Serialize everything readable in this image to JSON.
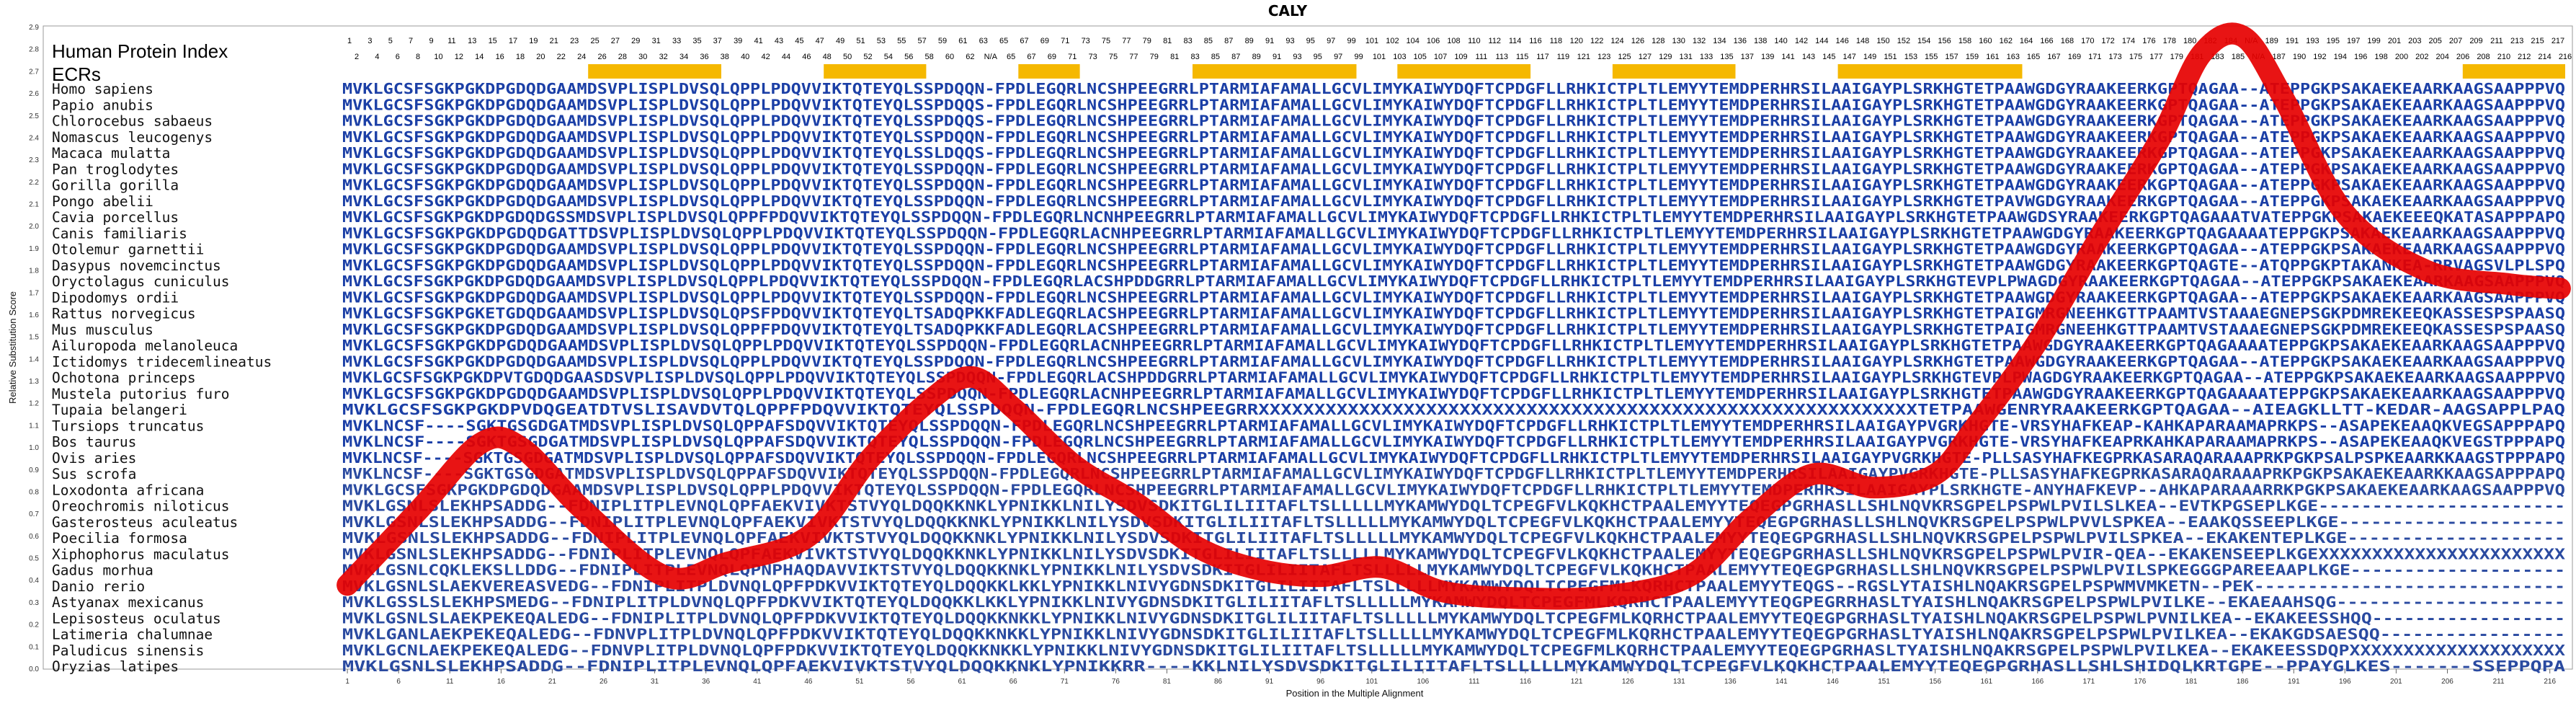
{
  "title": "CALY",
  "panel_heading": "Human Protein Index",
  "ecrs_label": "ECRs",
  "colors": {
    "conserved": "#1b3fa6",
    "variable": "#7a8fc0",
    "ecr_bar": "#f5b800",
    "curve": "#e60000"
  },
  "axes": {
    "ylabel": "Relative Substitution Score",
    "xlabel": "Position in the Multiple Alignment",
    "yticks": [
      "0.0",
      "0.1",
      "0.2",
      "0.3",
      "0.4",
      "0.5",
      "0.6",
      "0.7",
      "0.8",
      "0.9",
      "1.0",
      "1.1",
      "1.2",
      "1.3",
      "1.4",
      "1.5",
      "1.6",
      "1.7",
      "1.8",
      "1.9",
      "2.0",
      "2.1",
      "2.2",
      "2.3",
      "2.4",
      "2.5",
      "2.6",
      "2.7",
      "2.8",
      "2.9"
    ],
    "xticks": [
      "1",
      "6",
      "11",
      "16",
      "21",
      "26",
      "31",
      "36",
      "41",
      "46",
      "51",
      "56",
      "61",
      "66",
      "71",
      "76",
      "81",
      "86",
      "91",
      "96",
      "101",
      "106",
      "111",
      "116",
      "121",
      "126",
      "131",
      "136",
      "141",
      "146",
      "151",
      "156",
      "161",
      "166",
      "171",
      "176",
      "181",
      "186",
      "191",
      "196",
      "201",
      "206",
      "211",
      "216"
    ]
  },
  "index_odd": [
    "1",
    "3",
    "5",
    "7",
    "9",
    "11",
    "13",
    "15",
    "17",
    "19",
    "21",
    "23",
    "25",
    "27",
    "29",
    "31",
    "33",
    "35",
    "37",
    "39",
    "41",
    "43",
    "45",
    "47",
    "49",
    "51",
    "53",
    "55",
    "57",
    "59",
    "61",
    "63",
    "65",
    "67",
    "69",
    "71",
    "73",
    "75",
    "77",
    "79",
    "81",
    "83",
    "85",
    "87",
    "89",
    "91",
    "93",
    "95",
    "97",
    "99",
    "101",
    "102",
    "104",
    "106",
    "108",
    "110",
    "112",
    "114",
    "116",
    "118",
    "120",
    "122",
    "124",
    "126",
    "128",
    "130",
    "132",
    "134",
    "136",
    "138",
    "140",
    "142",
    "144",
    "146",
    "148",
    "150",
    "152",
    "154",
    "156",
    "158",
    "160",
    "162",
    "164",
    "166",
    "168",
    "170",
    "172",
    "174",
    "176",
    "178",
    "180",
    "182",
    "184",
    "N/A",
    "189",
    "191",
    "193",
    "195",
    "197",
    "199",
    "201",
    "203",
    "205",
    "207",
    "209",
    "211",
    "213",
    "215",
    "217"
  ],
  "index_even": [
    "2",
    "4",
    "6",
    "8",
    "10",
    "12",
    "14",
    "16",
    "18",
    "20",
    "22",
    "24",
    "26",
    "28",
    "30",
    "32",
    "34",
    "36",
    "38",
    "40",
    "42",
    "44",
    "46",
    "48",
    "50",
    "52",
    "54",
    "56",
    "58",
    "60",
    "62",
    "N/A",
    "65",
    "67",
    "69",
    "71",
    "73",
    "75",
    "77",
    "79",
    "81",
    "83",
    "85",
    "87",
    "89",
    "91",
    "93",
    "95",
    "97",
    "99",
    "101",
    "103",
    "105",
    "107",
    "109",
    "111",
    "113",
    "115",
    "117",
    "119",
    "121",
    "123",
    "125",
    "127",
    "129",
    "131",
    "133",
    "135",
    "137",
    "139",
    "141",
    "143",
    "145",
    "147",
    "149",
    "151",
    "153",
    "155",
    "157",
    "159",
    "161",
    "163",
    "165",
    "167",
    "169",
    "171",
    "173",
    "175",
    "177",
    "179",
    "181",
    "183",
    "185",
    "N/A",
    "187",
    "190",
    "192",
    "194",
    "196",
    "198",
    "200",
    "202",
    "204",
    "206",
    "208",
    "210",
    "212",
    "214",
    "216"
  ],
  "ecr_regions": [
    [
      25,
      37
    ],
    [
      48,
      57
    ],
    [
      67,
      72
    ],
    [
      84,
      99
    ],
    [
      104,
      116
    ],
    [
      125,
      136
    ],
    [
      147,
      164
    ],
    [
      208,
      217
    ]
  ],
  "chart_data": {
    "type": "line",
    "title": "CALY",
    "xlabel": "Position in the Multiple Alignment",
    "ylabel": "Relative Substitution Score",
    "xlim": [
      1,
      217
    ],
    "ylim": [
      0.0,
      2.9
    ],
    "series": [
      {
        "x": [
          1,
          8,
          14,
          18,
          24,
          32,
          38,
          46,
          52,
          58,
          62,
          66,
          72,
          78,
          84,
          90,
          96,
          102,
          108,
          116,
          124,
          132,
          138,
          144,
          150,
          156,
          160,
          166,
          172,
          178,
          182,
          186,
          190,
          196,
          204,
          212,
          217
        ],
        "y": [
          0.38,
          0.72,
          1.02,
          1.0,
          0.72,
          0.42,
          0.48,
          0.6,
          0.95,
          1.22,
          1.32,
          1.18,
          0.92,
          0.75,
          0.55,
          0.45,
          0.42,
          0.46,
          0.35,
          0.32,
          0.33,
          0.42,
          0.68,
          0.88,
          0.82,
          0.88,
          1.1,
          1.48,
          1.95,
          2.4,
          2.78,
          2.86,
          2.58,
          2.06,
          1.8,
          1.74,
          1.72
        ]
      }
    ]
  },
  "rows": [
    {
      "species": "Homo sapiens",
      "seq": "MVKLGCSFSGKPGKDPGDQDGAAMDSVPLISPLDVSQLQPPLPDQVVIKTQTEYQLSSPDQQN-FPDLEGQRLNCSHPEEGRRLPTARMIAFAMALLGCVLIMYKAIWYDQFTCPDGFLLRHKICTPLTLEMYYTEMDPERHRSILAAIGAYPLSRKHGTETPAAWGDGYRAAKEERKGPTQAGAA--ATEPPGKPSAKAEKEAARKAAGSAAPPPVQ"
    },
    {
      "species": "Papio anubis",
      "seq": "MVKLGCSFSGKPGKDPGDQDGAAMDSVPLISPLDVSQLQPPLPDQVVIKTQTEYQLSSPDQQS-FPDLEGQRLNCSHPEEGRRLPTARMIAFAMALLGCVLIMYKAIWYDQFTCPDGFLLRHKICTPLTLEMYYTEMDPERHRSILAAIGAYPLSRKHGTETPAAWGDGYRAAKEERKGPTQAGAA--ATEPPGKPSAKAEKEAARKAAGSAAPPPVQ"
    },
    {
      "species": "Chlorocebus sabaeus",
      "seq": "MVKLGCSFSGKPGKDPGDQDGAAMDSVPLISPLDVSQLQPPLPDQVVIKTQTEYQLSSPDQQS-FPDLEGQRLNCSHPEEGRRLPTARMIAFAMALLGCVLIMYKAIWYDQFTCPDGFLLRHKICTPLTLEMYYTEMDPERHRSILAAIGAYPLSRKHGTETPAAWGDGYRAAKEERKGPTQAGAA--ATEPPGKPSAKAEKEAARKAAGSAAPPPVQ"
    },
    {
      "species": "Nomascus leucogenys",
      "seq": "MVKLGCSFSGKPGKDPGDQDGAAMDSVPLISPLDVSQLQPPLPDQVVIKTQTEYQLSSPDQQN-FPDLEGQRLNCSHPEEGRRLPTARMIAFAMALLGCVLIMYKAIWYDQFTCPDGFLLRHKICTPLTLEMYYTEMDPERHRSILAAIGAYPLSRKHGTETPAAWGDGYRAAKEERKGPTQAGAA--ATEPPGKPSAKAEKEAARKAAGSAAPPPVQ"
    },
    {
      "species": "Macaca mulatta",
      "seq": "MVKLGCSFSGKPGKDPGDQDGAAMDSVPLISPLDVSQLQPPLPDQVVIKTQTEYQLSSLDQQS-FPDLEGQRLNCSHPEEGRRLPTARMIAFAMALLGCVLIMYKAIWYDQFTCPDGFLLRHKICTPLTLEMYYTEMDPERHRSILAAIGAYPLSRKHGTETPAAWGDGYRAAKEERKGPTQAGAA--ATEPPGKPSAKAEKEAARKAAGSAAPPPVQ"
    },
    {
      "species": "Pan troglodytes",
      "seq": "MVKLGCSFSGKPGKDPGDQDGAAMDSVPLISPLDVSQLQPPLPDQVVIKTQTEYQLSSPDQQN-FPDLEGQRLNCSHPEEGRRLPTARMIAFAMALLGCVLIMYKAIWYDQFTCPDGFLLRHKICTPLTLEMYYTEMDPERHRSILAAIGAYPLSRKHGTETPAAWGDGYRAAKEERKGPTQAGAA--ATEPPGKPSAKAEKEAARKAAGSAAPPPVQ"
    },
    {
      "species": "Gorilla gorilla",
      "seq": "MVKLGCSFSGKPGKDPGDQDGAAMDSVPLISPLDVSQLQPPLPDQVVIKTQTEYQLSSPDQQN-FPDLEGQRLNCSHPEEGRRLPTARMIAFAMALLGCVLIMYKAIWYDQFTCPDGFLLRHKICTPLTLEMYYTEMDPERHRSILAAIGAYPLSRKHGTETPAAWGDGYRAAKEERKGPTQAGAA--ATEPPGKPSAKAEKEAARKAAGSAAPPPVQ"
    },
    {
      "species": "Pongo abelii",
      "seq": "MVKLGCSFSGKPGKDPGDQDGAAMDSVPLISPLDVSQLQPPLPDQVVIKTQTEYQLSSPDQQN-FPDLEGQRLNCSHPEEGRRLPTARMIAFAMALLGCVLIMYKAIWYDQFTCPDGFLLRHKICTPLTLEMYYTEMDPERHRSILAAIGAYPLSRKHGTETPAVWGDGYRAAKEERKGPTQAGAA--ATEPPGKPSAKAEKEAARKAAGSAAPPPVQ"
    },
    {
      "species": "Cavia porcellus",
      "seq": "MVKLGCSFSGKPGKDPGDQDGSSMDSVPLISPLDVSQLQPPFPDQVVIKTQTEYQLSSPDQQN-FPDLEGQRLNCNHPEEGRRLPTARMIAFAMALLGCVLIMYKAIWYDQFTCPDGFLLRHKICTPLTLEMYYTEMDPERHRSILAAIGAYPLSRKHGTETPAAWGDSYRAAKEERKGPTQAGAAATVATEPPGKPSAKAEKEEEQKATASAPPPAPQ"
    },
    {
      "species": "Canis familiaris",
      "seq": "MVKLGCSFSGKPGKDPGDQDGATTDSVPLISPLDVSQLQPPLPDQVVIKTQTEYQLSSPDQQN-FPDLEGQRLACNHPEEGRRLPTARMIAFAMALLGCVLIMYKAIWYDQFTCPDGFLLRHKICTPLTLEMYYTEMDPERHRSILAAIGAYPLSRKHGTETPAAWGDGYRAAKEERKGPTQAGAAAATEPPGKPSAKAEKEAARKAAGSAAPPPVQ"
    },
    {
      "species": "Otolemur garnettii",
      "seq": "MVKLGCSFSGKPGKDPGDQDGAAMDSVPLISPLDVSQLQPPLPDQVVIKTQTEYQLSSPDQQN-FPDLEGQRLNCSHPEEGRRLPTARMIAFAMALLGCVLIMYKAIWYDQFTCPDGFLLRHKICTPLTLEMYYTEMDPERHRSILAAIGAYPLSRKHGTETPAAWGDGYRAAKEERKGPTQAGAA--ATEPPGKPSAKAEKEAARKAAGSAAPPPVQ"
    },
    {
      "species": "Dasypus novemcinctus",
      "seq": "MVKLGCSFSGKPGKDPGDQDGAAMDSVPLISPLDVSQLQPPLPDQVVIKTQTEYQLSSPDQQN-FPDLEGQRLNCSHPEEGRRLPTARMIAFAMALLGCVLIMYKAIWYDQFTCPDGFLLRHKICTPLTLEMYYTEMDPERHRSILAAIGAYPLSRKHGTETPAAWGDGYRAAKEERKGPTQAGTE--ATQPPGKPTAKANKEA-RRVAGSVLPLSPQ"
    },
    {
      "species": "Oryctolagus cuniculus",
      "seq": "MVKLGCSFSGKPGKDPGDQDGAAMDSVPLISPLDVSQLQPPLPDQVVIKTQTEYQLSSPDQQN-FPDLEGQRLACSHPDDGRRLPTARMIAFAMALLGCVLIMYKAIWYDQFTCPDGFLLRHKICTPLTLEMYYTEMDPERHRSILAAIGAYPLSRKHGTEVPLPWAGDGYRAAKEERKGPTQAGAA--ATEPPGKPSAKAEKEAARKAAGSAAPPPVQ"
    },
    {
      "species": "Dipodomys ordii",
      "seq": "MVKLGCSFSGKPGKDPGDQDGAAMDSVPLISPLDVSQLQPPLPDQVVIKTQTEYQLSSPDQQN-FPDLEGQRLNCSHPEEGRRLPTARMIAFAMALLGCVLIMYKAIWYDQFTCPDGFLLRHKICTPLTLEMYYTEMDPERHRSILAAIGAYPLSRKHGTETPAAWGDGYRAAKEERKGPTQAGAA--ATEPPGKPSAKAEKEAARKAAGSAAPPPVQ"
    },
    {
      "species": "Rattus norvegicus",
      "seq": "MVKLGCSFSGKPGKETGDQDGAAMDSVPLISPLDVSQLQPSFPDQVVIKTQTEYQLTSADQPKKFADLEGQRLACSHPEEGRRLPTARMIAFAMALLGCVLIMYKAIWYDQFTCPDGFLLRHKICTPLTLEMYYTEMDPERHRSILAAIGAYPLSRKHGTETPAIGMRGNEEHKGTTPAAMTVSTAAAEGNEPSGKPDMREKEEQKASSESPSPAASQ"
    },
    {
      "species": "Mus musculus",
      "seq": "MVKLGCSFSGKPGKDPGDQDGAAMDSVPLISPLDVSQLQPPFPDQVVIKTQTEYQLTSADQPKKFADLEGQRLACSHPEEGRRLPTARMIAFAMALLGCVLIMYKAIWYDQFTCPDGFLLRHKICTPLTLEMYYTEMDPERHRSILAAIGAYPLSRKHGTETPAIGMRGNEEHKGTTPAAMTVSTAAAEGNEPSGKPDMREKEEQKASSESPSPAASQ"
    },
    {
      "species": "Ailuropoda melanoleuca",
      "seq": "MVKLGCSFSGKPGKDPGDQDGAAMDSVPLISPLDVSQLQPPLPDQVVIKTQTEYQLSSPDQQN-FPDLEGQRLACNHPEEGRRLPTARMIAFAMALLGCVLIMYKAIWYDQFTCPDGFLLRHKICTPLTLEMYYTEMDPERHRSILAAIGAYPLSRKHGTETPAAWGDGYRAAKEERKGPTQAGAAAATEPPGKPSAKAEKEAARKAAGSAAPPPVQ"
    },
    {
      "species": "Ictidomys tridecemlineatus",
      "seq": "MVKLGCSFSGKPGKDPGDQDGAAMDSVPLISPLDVSQLQPPLPDQVVIKTQTEYQLSSPDQQN-FPDLEGQRLNCSHPEEGRRLPTARMIAFAMALLGCVLIMYKAIWYDQFTCPDGFLLRHKICTPLTLEMYYTEMDPERHRSILAAIGAYPLSRKHGTETPAAWGDGYRAAKEERKGPTQAGAA--ATEPPGKPSAKAEKEAARKAAGSAAPPPVQ"
    },
    {
      "species": "Ochotona princeps",
      "seq": "MVKLGCSFSGKPGKDPVTGDQDGAASDSVPLISPLDVSQLQPPLPDQVVIKTQTEYQLSSPDQQN-FPDLEGQRLACSHPDDGRRLPTARMIAFAMALLGCVLIMYKAIWYDQFTCPDGFLLRHKICTPLTLEMYYTEMDPERHRSILAAIGAYPLSRKHGTEVPLPWAGDGYRAAKEERKGPTQAGAA--ATEPPGKPSAKAEKEAARKAAGSAAPPPVQ"
    },
    {
      "species": "Mustela putorius furo",
      "seq": "MVKLGCSFSGKPGKDPGDQDGAAMDSVPLISPLDVSQLQPPLPDQVVIKTQTEYQLSSPDQQN-FPDLEGQRLACNHPEEGRRLPTARMIAFAMALLGCVLIMYKAIWYDQFTCPDGFLLRHKICTPLTLEMYYTEMDPERHRSILAAIGAYPLSRKHGTETPAAWGDGYRAAKEERKGPTQAGAAAATEPPGKPSAKAEKEAARKAAGSAAPPPVQ"
    },
    {
      "species": "Tupaia belangeri",
      "seq": "MVKLGCSFSGKPGKDPVDQGEATDTVSLISAVDVTQLQPPFPDQVVIKTQTEYQLSSPDQQN-FPDLEGQRLNCSHPEEGRRXXXXXXXXXXXXXXXXXXXXXXXXXXXXXXXXXXXXXXXXXXXXXXXXXXXXXXXXXXXTETPAAWGENRYRAAKEERKGPTQAGAA--AIEAGKLLTT-KEDAR-AAGSAPPLPAQ"
    },
    {
      "species": "Tursiops truncatus",
      "seq": "MVKLNCSF----SGKTGSGDGATMDSVPLISPLDVSQLQPPAFSDQVVIKTQTEYQLSSPDQQN-FPDLEGQRLNCSHPEEGRRLPTARMIAFAMALLGCVLIMYKAIWYDQFTCPDGFLLRHKICTPLTLEMYYTEMDPERHRSILAAIGAYPVGRKHGTE-VRSYHAFKEAP-KAHKAPARAAMAPRKPS--ASAPEKEAAQKVEGSAPPPAPQ"
    },
    {
      "species": "Bos taurus",
      "seq": "MVKLNCSF----SGKTGSGDGATMDSVPLISPLDVSQLQPPAFSDQVVIKTQTEYQLSSPDQQN-FPDLEGQRLNCSHPEEGRRLPTARMIAFAMALLGCVLIMYKAIWYDQFTCPDGFLLRHKICTPLTLEMYYTEMDPERHRSILAAIGAYPVGRKHGTE-VRSYHAFKEAPRKAHKAPARAAMAPRKPS--ASAPEKEAAQKVEGSTPPPAPQ"
    },
    {
      "species": "Ovis aries",
      "seq": "MVKLNCSF----SGKTGSGDGATMDSVPLISPLDVSQLQPPAFSDQVVIKTQTEYQLSSPDQQN-FPDLEGQRLNCSHPEEGRRLPTARMIAFAMALLGCVLIMYKAIWYDQFTCPDGFLLRHKICTPLTLEMYYTEMDPERHRSILAAIGAYPVGRKHGTE-PLLSASYHAFKEGPRKASARAQARAAAPRKPGKPSALPSPKEAARKKAAGSTPPPAPQ"
    },
    {
      "species": "Sus scrofa",
      "seq": "MVKLNCSF----SGKTGSGDGATMDSVPLISPLDVSQLQPPAFSDQVVIKTQTEYQLSSPDQQN-FPDLEGQRLNCSHPEEGRRLPTARMIAFAMALLGCVLIMYKAIWYDQFTCPDGFLLRHKICTPLTLEMYYTEMDPERHRSILAAIGAYPVGRKHGTE-PLLSASYHAFKEGPRKASARAQARAAAPRKPGKPSAKAEKEAARKKAAGSAPPPAPQ"
    },
    {
      "species": "Loxodonta africana",
      "seq": "MVKLGCSFSGKPGKDPGDQDGAAMDSVPLISPLDVSQLQPPLPDQVVIKTQTEYQLSSPDQQN-FPDLEGQRLNCSHPEEGRRLPTARMIAFAMALLGCVLIMYKAIWYDQFTCPDGFLLRHKICTPLTLEMYYTEMDPERHRSILAAIGAYPLSRKHGTE-ANYHAFKEVP--AHKAPARAAARRKPGKPSAKAEKEAARKAAGSAAPPPVQ"
    },
    {
      "species": "Oreochromis niloticus",
      "seq": "MVKLGSNLSLEKHPSADDG--FDNIPLITPLEVNQLQPFAEKVIVKTSTVYQLDQQKKNKLYPNIKKLNILYSDVSDKITGLILIITAFLTSLLLLLMYKAMWYDQLTCPEGFVLKQKHCTPAALEMYYTEQEGPGRHASLLSHLNQVKRSGPELPSPWLPVILSLKEA--EVTKPGSEPLKGE-----------------------"
    },
    {
      "species": "Gasterosteus aculeatus",
      "seq": "MVKLGSNLSLEKHPSADDG--FDNIPLITPLEVNQLQPFAEKVIVKTSTVYQLDQQKKNKLYPNIKKLNILYSDVSDKITGLILIITAFLTSLLLLLMYKAMWYDQLTCPEGFVLKQKHCTPAALEMYYTEQEGPGRHASLLSHLNQVKRSGPELPSPWLPVVLSPKEA--EAAKQSSEEPLKGE---------------------"
    },
    {
      "species": "Poecilia formosa",
      "seq": "MVKLGSNLSLEKHPSADDG--FDNIPLITPLEVNQLQPFAEKVIVKTSTVYQLDQQKKNKLYPNIKKLNILYSDVSDKITGLILIITAFLTSLLLLLMYKAMWYDQLTCPEGFVLKQKHCTPAALEMYYTEQEGPGRHASLLSHLNQVKRSGPELPSPWLPVILSPKEA--EKAKENTEPLKGE--------------------"
    },
    {
      "species": "Xiphophorus maculatus",
      "seq": "MVKLGSNLSLEKHPSADDG--FDNIPLITPLEVNQLQPFAEKVIVKTSTVYQLDQQKKNKLYPNIKKLNILYSDVSDKITGLILIITAFLTSLLLLLMYKAMWYDQLTCPEGFVLKQKHCTPAALEMYYTEQEGPGRHASLLSHLNQVKRSGPELPSPWLPVIR-QEA--EKAKENSEEPLKGEXXXXXXXXXXXXXXXXXXXXXXX"
    },
    {
      "species": "Gadus morhua",
      "seq": "MVKLGSNLCQKLEKSLLDDG--FDNIPLITPLEVNQLQPNPHAQDAVVIKTSTVYQLDQQKKNKLYPNIKKLNILYSDVSDKITGLILIITAFLTSLLLLLMYKAMWYDQLTCPEGFVLKQKHCTPAALEMYYTEQEGPGRHASLLSHLNQVKRSGPELPSPWLPVILSPKEGGGPAREEAAPLKGE--------------------"
    },
    {
      "species": "Danio rerio",
      "seq": "MVKLGSNLSLAEKVEREASVEDG--FDNIPLITPLDVNQLQPFPDKVVIKTQTEYQLDQQKKLKKLYPNIKKLNIVYGDNSDKITGLILIITAFLTSLLLLLMYKAMWYDQLTCPEGFMLKQRHCTPAALEMYYTEQGS--RGSLYTAISHLNQAKRSGPELPSPWMVMKETN--PEK-----------------------------"
    },
    {
      "species": "Astyanax mexicanus",
      "seq": "MVKLGSSLSLEKHPSMEDG--FDNIPLITPLDVNQLQPFPDKVVIKTQTEYQLDQQKKLKKLYPNIKKLNIVYGDNSDKITGLILIITAFLTSLLLLLMYKAMWYDQLTCPEGFMLKQRHCTPAALEMYYTEQGPEGRRHASLTYAISHLNQAKRSGPELPSPWLPVILKE--EKAEAAHSQG---------------------"
    },
    {
      "species": "Lepisosteus oculatus",
      "seq": "MVKLGSNLSLAEKPEKEQALEDG--FDNIPLITPLDVNQLQPFPDKVVIKTQTEYQLDQQKKNKKLYPNIKKLNIVYGDNSDKITGLILIITAFLTSLLLLLMYKAMWYDQLTCPEGFMLKQRHCTPAALEMYYTEQEGPGRHASLTYAISHLNQAKRSGPELPSPWLPVNILKEA--EKAKEESSHQQ------------------"
    },
    {
      "species": "Latimeria chalumnae",
      "seq": "MVKLGANLAEKPEKEQALEDG--FDNVPLITPLDVNQLQPFPDKVVIKTQTEYQLDQQKKNKKLYPNIKKLNIVYGDNSDKITGLILIITAFLTSLLLLLMYKAMWYDQLTCPEGFMLKQRHCTPAALEMYYTEQEGPGRHASLTYAISHLNQAKRSGPELPSPWLPVILKEA--EKAKGDSAESQQ-----------------"
    },
    {
      "species": "Paludicus sinensis",
      "seq": "MVKLGCNLAEKPEKEQALEDG--FDNVPLITPLDVNQLQPFPDKVVIKTQTEYQLDQQKKNKKLYPNIKKLNIVYGDNSDKITGLILIITAFLTSLLLLLMYKAMWYDQLTCPEGFMLKQRHCTPAALEMYYTEQEGPGRHASLTYAISHLNQAKRSGPELPSPWLPVILKEA--EKAKEESSDQPXXXXXXXXXXXXXXXXXXXX"
    },
    {
      "species": "Oryzias latipes",
      "seq": "MVKLGSNLSLEKHPSADDG--FDNIPLITPLEVNQLQPFAEKVIVKTSTVYQLDQQKKNKLYPNIKKRR----KKLNILYSDVSDKITGLILIITAFLTSLLLLLMYKAMWYDQLTCPEGFVLKQKHCTPAALEMYYTEQEGPGRHASLLSHLSHIDQLKRTGPE--PPAYGLKES-------SSEPPQPA"
    }
  ]
}
